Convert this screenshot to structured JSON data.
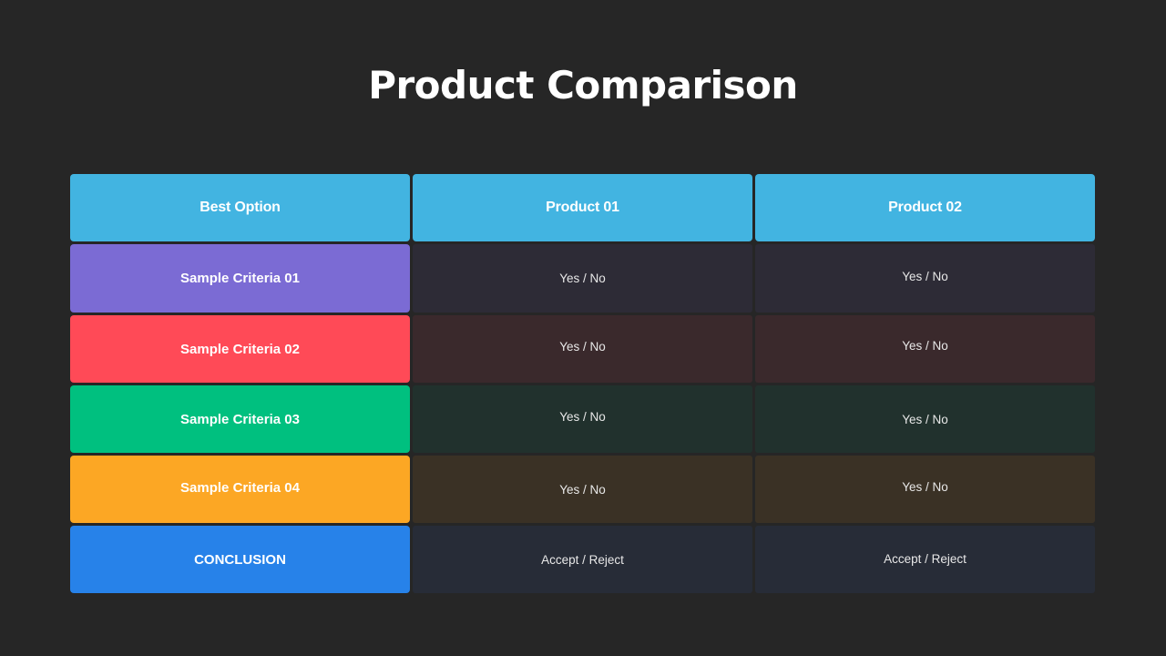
{
  "title": "Product Comparison",
  "header": {
    "col0": "Best Option",
    "col1": "Product 01",
    "col2": "Product 02",
    "color": "#42b4e1"
  },
  "rows": [
    {
      "criteria": "Sample Criteria 01",
      "p1": "Yes / No",
      "p2": "Yes / No",
      "accent": "#7b6bd4",
      "cell_bg": "#2d2b36"
    },
    {
      "criteria": "Sample Criteria 02",
      "p1": "Yes / No",
      "p2": "Yes / No",
      "accent": "#ff4a57",
      "cell_bg": "#3a292c"
    },
    {
      "criteria": "Sample Criteria 03",
      "p1": "Yes / No",
      "p2": "Yes / No",
      "accent": "#00c07f",
      "cell_bg": "#21312d"
    },
    {
      "criteria": "Sample Criteria 04",
      "p1": "Yes / No",
      "p2": "Yes / No",
      "accent": "#fca724",
      "cell_bg": "#3a3125"
    },
    {
      "criteria": "CONCLUSION",
      "p1": "Accept / Reject",
      "p2": "Accept / Reject",
      "accent": "#2782e9",
      "cell_bg": "#272c37"
    }
  ]
}
